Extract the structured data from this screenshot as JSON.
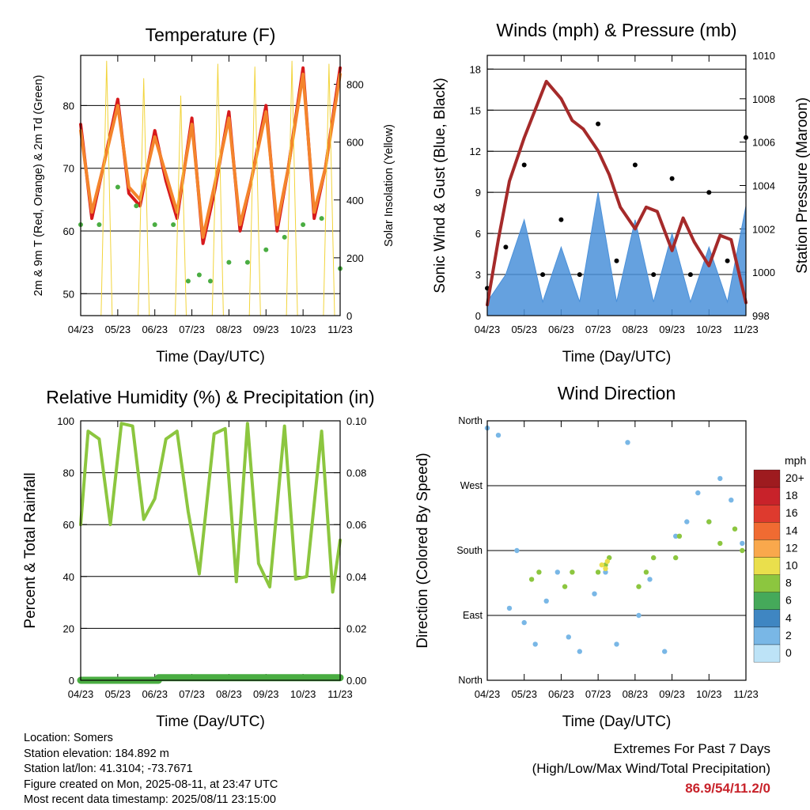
{
  "footer": {
    "location": "Location: Somers",
    "elevation": "Station elevation: 184.892 m",
    "latlon": "Station lat/lon: 41.3104; -73.7671",
    "created": "Figure created on Mon, 2025-08-11, at 23:47 UTC",
    "recent": "Most recent data timestamp: 2025/08/11 23:15:00",
    "extremes_title": "Extremes For Past 7 Days",
    "extremes_sub": "(High/Low/Max Wind/Total Precipitation)",
    "extremes_values": "86.9/54/11.2/0"
  },
  "chart_data": [
    {
      "id": "temperature",
      "type": "line",
      "title": "Temperature (F)",
      "xlabel": "Time (Day/UTC)",
      "ylabel": "2m & 9m T (Red, Orange) & 2m Td (Green)",
      "ylabel_right": "Solar Insolation (Yellow)",
      "x_ticks": [
        "04/23",
        "05/23",
        "06/23",
        "07/23",
        "08/23",
        "09/23",
        "10/23",
        "11/23"
      ],
      "ylim": [
        46.5,
        88
      ],
      "y_ticks": [
        50,
        60,
        70,
        80
      ],
      "y2lim": [
        0,
        900
      ],
      "y2_ticks": [
        0,
        200,
        400,
        600,
        800
      ],
      "grid": true,
      "series": [
        {
          "color": "#d7191c",
          "axis": "left",
          "style": "line",
          "x": [
            4.0,
            4.3,
            4.6,
            5.0,
            5.3,
            5.6,
            6.0,
            6.3,
            6.6,
            7.0,
            7.3,
            7.6,
            8.0,
            8.3,
            8.6,
            9.0,
            9.3,
            9.6,
            10.0,
            10.3,
            10.6,
            11.0
          ],
          "y": [
            77,
            62,
            70,
            81,
            66,
            64,
            76,
            68,
            62,
            78,
            58,
            66,
            79,
            60,
            68,
            80,
            60,
            70,
            86,
            62,
            70,
            86
          ]
        },
        {
          "color": "#f4842c",
          "axis": "left",
          "style": "line",
          "x": [
            4.0,
            4.3,
            4.6,
            5.0,
            5.3,
            5.6,
            6.0,
            6.3,
            6.6,
            7.0,
            7.3,
            7.6,
            8.0,
            8.3,
            8.6,
            9.0,
            9.3,
            9.6,
            10.0,
            10.3,
            10.6,
            11.0
          ],
          "y": [
            76,
            63,
            70,
            80,
            67,
            65,
            75,
            69,
            63,
            77,
            59,
            67,
            78,
            61,
            68,
            79,
            61,
            70,
            85,
            63,
            70,
            85
          ]
        },
        {
          "color": "#4aad42",
          "axis": "left",
          "style": "dots",
          "x": [
            4.0,
            4.5,
            5.0,
            5.5,
            6.0,
            6.5,
            6.9,
            7.2,
            7.5,
            8.0,
            8.5,
            9.0,
            9.5,
            10.0,
            10.5,
            11.0
          ],
          "y": [
            61,
            61,
            67,
            64,
            61,
            61,
            52,
            53,
            52,
            55,
            55,
            57,
            59,
            61,
            62,
            54
          ]
        },
        {
          "color": "#f2d43b",
          "axis": "right",
          "style": "thin",
          "x": [
            4.55,
            4.7,
            4.85,
            5.55,
            5.7,
            5.85,
            6.55,
            6.7,
            6.85,
            7.55,
            7.7,
            7.85,
            8.55,
            8.7,
            8.85,
            9.55,
            9.7,
            9.85,
            10.55,
            10.7,
            10.85
          ],
          "y": [
            0,
            880,
            0,
            0,
            820,
            0,
            0,
            760,
            0,
            0,
            870,
            0,
            0,
            860,
            0,
            0,
            880,
            0,
            0,
            870,
            0
          ]
        }
      ]
    },
    {
      "id": "winds",
      "type": "scatter",
      "title": "Winds (mph) & Pressure (mb)",
      "xlabel": "Time (Day/UTC)",
      "ylabel": "Sonic Wind & Gust (Blue, Black)",
      "ylabel_right": "Station Pressure (Maroon)",
      "x_ticks": [
        "04/23",
        "05/23",
        "06/23",
        "07/23",
        "08/23",
        "09/23",
        "10/23",
        "11/23"
      ],
      "ylim": [
        0,
        19
      ],
      "y_ticks": [
        0,
        3,
        6,
        9,
        12,
        15,
        18
      ],
      "y2lim": [
        998,
        1010
      ],
      "y2_ticks": [
        998,
        1000,
        1002,
        1004,
        1006,
        1008,
        1010
      ],
      "grid": true,
      "series": [
        {
          "color": "#000000",
          "axis": "left",
          "style": "dots",
          "x": [
            4.0,
            4.5,
            5.0,
            5.5,
            6.0,
            6.5,
            7.0,
            7.5,
            8.0,
            8.5,
            9.0,
            9.5,
            10.0,
            10.5,
            11.0
          ],
          "y": [
            2,
            5,
            11,
            3,
            7,
            3,
            14,
            4,
            11,
            3,
            10,
            3,
            9,
            4,
            13
          ]
        },
        {
          "color": "#4a90d9",
          "axis": "left",
          "style": "area",
          "x": [
            4.0,
            4.5,
            5.0,
            5.5,
            6.0,
            6.5,
            7.0,
            7.5,
            8.0,
            8.5,
            9.0,
            9.5,
            10.0,
            10.5,
            11.0
          ],
          "y": [
            1,
            3,
            7,
            1,
            5,
            1,
            9,
            1,
            7,
            1,
            6,
            1,
            5,
            1,
            8
          ]
        },
        {
          "color": "#a52a2a",
          "axis": "right",
          "style": "line",
          "x": [
            4.0,
            4.3,
            4.6,
            5.0,
            5.3,
            5.6,
            6.0,
            6.3,
            6.6,
            7.0,
            7.3,
            7.6,
            8.0,
            8.3,
            8.6,
            9.0,
            9.3,
            9.6,
            10.0,
            10.3,
            10.6,
            11.0
          ],
          "y": [
            998.5,
            1001.5,
            1004.2,
            1006.2,
            1007.5,
            1008.8,
            1008.0,
            1007.0,
            1006.6,
            1005.6,
            1004.5,
            1003.0,
            1002.0,
            1003.0,
            1002.8,
            1001.0,
            1002.5,
            1001.4,
            1000.3,
            1001.7,
            1001.5,
            998.6
          ]
        }
      ]
    },
    {
      "id": "humidity",
      "type": "line",
      "title": "Relative Humidity (%) & Precipitation (in)",
      "xlabel": "Time (Day/UTC)",
      "ylabel": "Percent & Total Rainfall",
      "x_ticks": [
        "04/23",
        "05/23",
        "06/23",
        "07/23",
        "08/23",
        "09/23",
        "10/23",
        "11/23"
      ],
      "ylim": [
        0,
        100
      ],
      "y_ticks": [
        0,
        20,
        40,
        60,
        80,
        100
      ],
      "y2lim": [
        0,
        0.1
      ],
      "y2_ticks": [
        "0.00",
        "0.02",
        "0.04",
        "0.06",
        "0.08",
        "0.10"
      ],
      "grid": true,
      "series": [
        {
          "color": "#8cc63f",
          "axis": "left",
          "style": "line",
          "x": [
            4.0,
            4.2,
            4.5,
            4.8,
            5.1,
            5.4,
            5.7,
            6.0,
            6.3,
            6.6,
            6.9,
            7.2,
            7.6,
            7.9,
            8.2,
            8.5,
            8.8,
            9.1,
            9.5,
            9.8,
            10.1,
            10.5,
            10.8,
            11.0
          ],
          "y": [
            60,
            96,
            93,
            60,
            99,
            98,
            62,
            70,
            93,
            96,
            65,
            41,
            95,
            97,
            38,
            99,
            45,
            36,
            98,
            39,
            40,
            96,
            34,
            54
          ]
        },
        {
          "color": "#4aad42",
          "axis": "right",
          "style": "step",
          "x": [
            4.0,
            6.1,
            6.1,
            11.0
          ],
          "y": [
            0.0,
            0.0,
            0.001,
            0.001
          ]
        }
      ]
    },
    {
      "id": "wind_direction",
      "type": "scatter",
      "title": "Wind Direction",
      "xlabel": "Time (Day/UTC)",
      "ylabel": "Direction (Colored By Speed)",
      "x_ticks": [
        "04/23",
        "05/23",
        "06/23",
        "07/23",
        "08/23",
        "09/23",
        "10/23",
        "11/23"
      ],
      "y_ticks": [
        "North",
        "East",
        "South",
        "West",
        "North"
      ],
      "ylim": [
        0,
        360
      ],
      "grid": true,
      "legend": {
        "title": "mph",
        "placement": "right",
        "labels": [
          "20+",
          "18",
          "16",
          "14",
          "12",
          "10",
          "8",
          "6",
          "4",
          "2",
          "0"
        ],
        "colors": [
          "#9e1b1f",
          "#c8222a",
          "#de3a2e",
          "#f06b32",
          "#f9a84c",
          "#eadf4c",
          "#8cc63f",
          "#45a95a",
          "#3f86c2",
          "#79b7e6",
          "#bde3f7"
        ]
      },
      "series": [
        {
          "color": "#79b7e6",
          "style": "dots",
          "x": [
            4.0,
            4.3,
            4.6,
            4.8,
            5.0,
            5.3,
            5.6,
            5.9,
            6.2,
            6.5,
            6.9,
            7.2,
            7.5,
            7.8,
            8.1,
            8.4,
            8.8,
            9.1,
            9.4,
            9.7,
            10.0,
            10.3,
            10.6,
            10.9
          ],
          "y": [
            350,
            340,
            100,
            180,
            80,
            50,
            110,
            150,
            60,
            40,
            120,
            150,
            50,
            330,
            90,
            140,
            40,
            200,
            220,
            260,
            220,
            280,
            250,
            190
          ]
        },
        {
          "color": "#8cc63f",
          "style": "dots",
          "x": [
            5.2,
            5.4,
            6.1,
            6.3,
            7.0,
            7.2,
            7.3,
            8.1,
            8.3,
            8.5,
            9.1,
            9.2,
            10.0,
            10.3,
            10.7,
            10.9
          ],
          "y": [
            140,
            150,
            130,
            150,
            150,
            160,
            170,
            130,
            150,
            170,
            170,
            200,
            220,
            190,
            210,
            180
          ]
        },
        {
          "color": "#eadf4c",
          "style": "dots",
          "x": [
            7.1,
            7.2,
            7.25
          ],
          "y": [
            160,
            155,
            165
          ]
        }
      ]
    }
  ]
}
